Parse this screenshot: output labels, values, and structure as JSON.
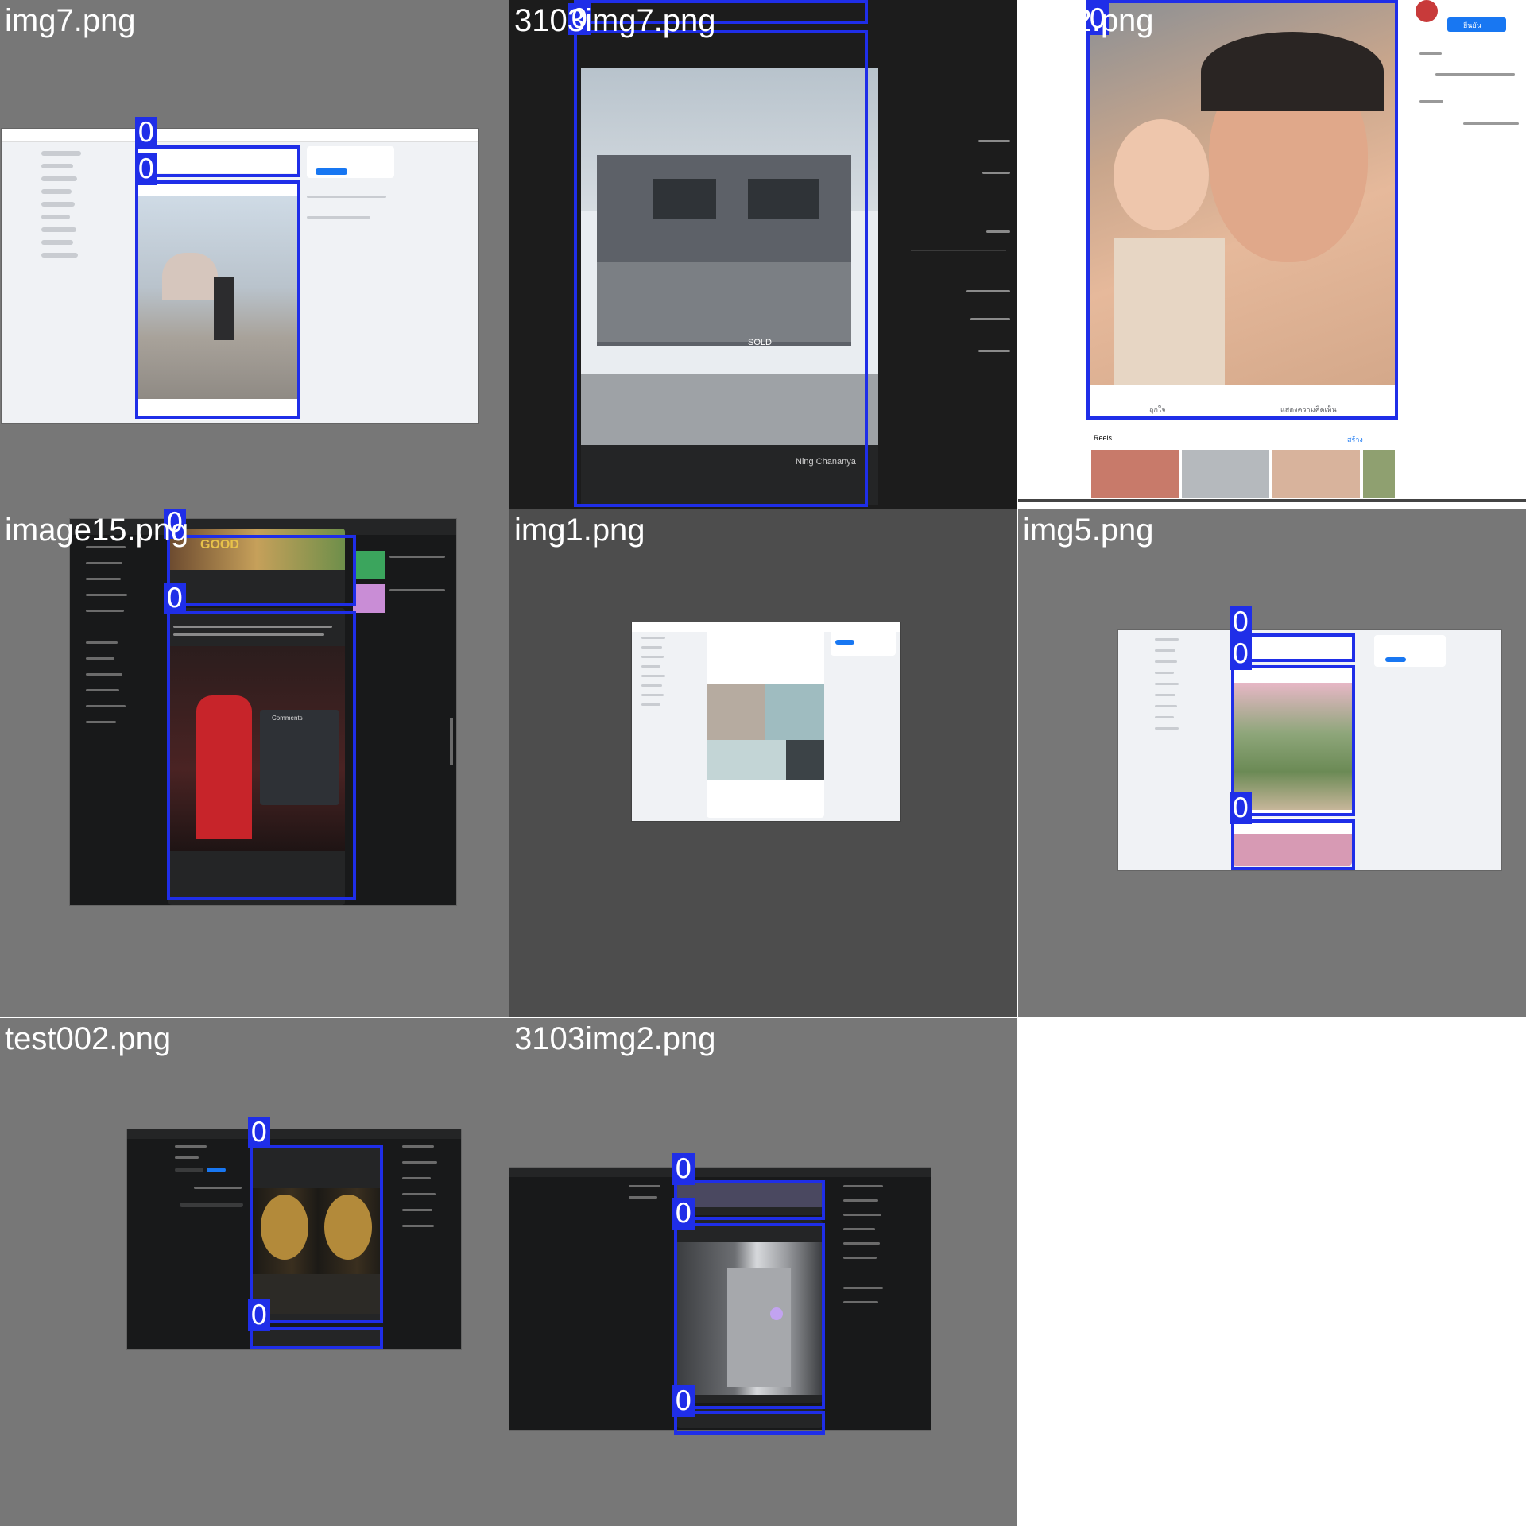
{
  "grid": {
    "cells": [
      {
        "filename": "img7.png",
        "label": "0"
      },
      {
        "filename": "3103img7.png",
        "label": "0"
      },
      {
        "filename": "img2.png",
        "label": "0"
      },
      {
        "filename": "image15.png",
        "label": "0"
      },
      {
        "filename": "img1.png",
        "label": ""
      },
      {
        "filename": "img5.png",
        "label": "0"
      },
      {
        "filename": "test002.png",
        "label": "0"
      },
      {
        "filename": "3103img2.png",
        "label": "0"
      }
    ]
  },
  "detection_label": "0",
  "screens": {
    "img2_post_actions": {
      "like": "ถูกใจ",
      "comment": "แสดงความคิดเห็น"
    },
    "img2_side": {
      "confirm": "ยืนยัน",
      "create": "สร้าง",
      "section": "Reels"
    },
    "image15_overlay_text": "GOOD",
    "image15_caption": "Comments",
    "img7_sold_sign": "SOLD",
    "img7_author": "Ning Chananya"
  },
  "colors": {
    "box": "#1f2ee8",
    "tile_bg": "#777777",
    "fb_blue": "#1877f2",
    "fb_light_bg": "#f0f2f5",
    "fb_dark_bg": "#18191a"
  }
}
